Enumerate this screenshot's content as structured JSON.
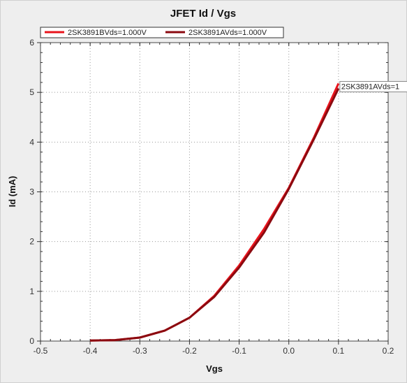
{
  "chart_data": {
    "type": "line",
    "title": "JFET Id / Vgs",
    "xlabel": "Vgs",
    "ylabel": "Id (mA)",
    "xlim": [
      -0.5,
      0.2
    ],
    "ylim": [
      0,
      6
    ],
    "xticks": [
      -0.5,
      -0.4,
      -0.3,
      -0.2,
      -0.1,
      0.0,
      0.1,
      0.2
    ],
    "xtick_labels": [
      "-0.5",
      "-0.4",
      "-0.3",
      "-0.2",
      "-0.1",
      "0.0",
      "0.1",
      "0.2"
    ],
    "yticks": [
      0,
      1,
      2,
      3,
      4,
      5,
      6
    ],
    "ytick_labels": [
      "0",
      "1",
      "2",
      "3",
      "4",
      "5",
      "6"
    ],
    "grid": true,
    "legend_position": "top-left",
    "series": [
      {
        "name": "2SK3891BVds=1.000V",
        "color": "#e8141c",
        "x": [
          -0.4,
          -0.35,
          -0.3,
          -0.25,
          -0.2,
          -0.15,
          -0.1,
          -0.05,
          0.0,
          0.05,
          0.1
        ],
        "y": [
          0.01,
          0.02,
          0.07,
          0.21,
          0.47,
          0.91,
          1.52,
          2.25,
          3.08,
          4.08,
          5.18
        ]
      },
      {
        "name": "2SK3891AVds=1.000V",
        "color": "#8b0a10",
        "x": [
          -0.4,
          -0.35,
          -0.3,
          -0.25,
          -0.2,
          -0.15,
          -0.1,
          -0.05,
          0.0,
          0.05,
          0.1
        ],
        "y": [
          0.01,
          0.02,
          0.07,
          0.21,
          0.47,
          0.89,
          1.48,
          2.18,
          3.06,
          4.05,
          5.08
        ]
      }
    ],
    "annotation": "2SK3891AVds=1"
  }
}
